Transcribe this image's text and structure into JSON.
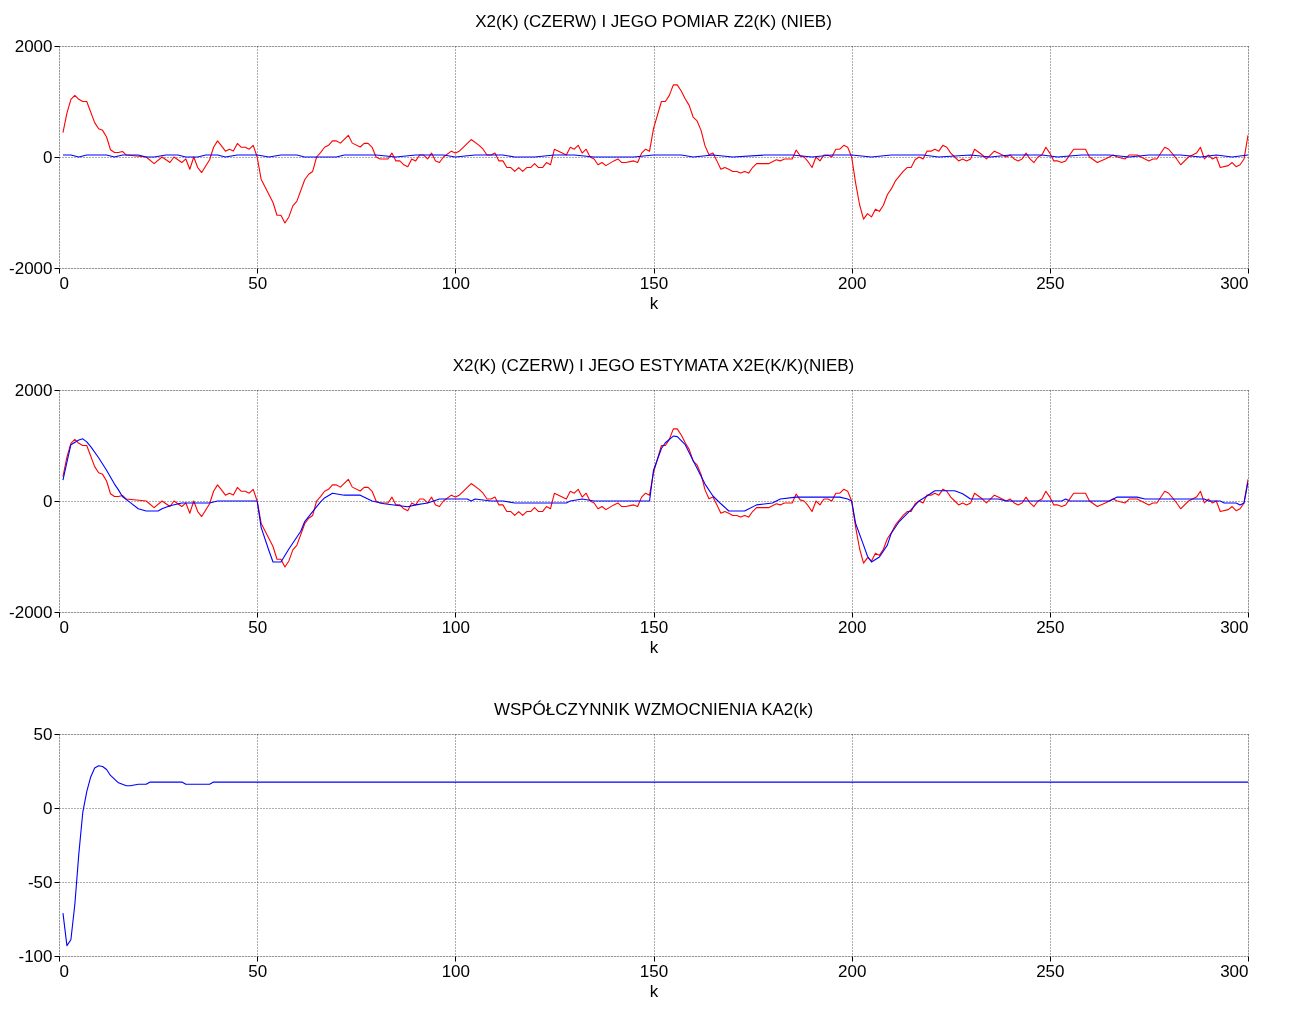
{
  "chart_data": [
    {
      "type": "line",
      "title": "X2(K) (CZERW) I  JEGO POMIAR Z2(K) (NIEB)",
      "xlabel": "k",
      "xlim": [
        0,
        300
      ],
      "xticks": [
        0,
        50,
        100,
        150,
        200,
        250,
        300
      ],
      "ylim": [
        -2000,
        2000
      ],
      "yticks": [
        -2000,
        0,
        2000
      ],
      "grid": true,
      "line_style": "solid",
      "marker": "none",
      "series": [
        {
          "color": "#ff0000",
          "x": [
            1,
            2,
            3,
            4,
            5,
            6,
            7,
            9,
            10,
            11,
            12,
            13,
            14,
            15,
            16,
            17,
            22,
            24,
            26,
            28,
            29,
            31,
            32,
            33,
            34,
            35,
            36,
            38,
            39,
            40,
            41,
            42,
            43,
            44,
            45,
            46,
            47,
            48,
            49,
            50,
            51,
            52,
            54,
            55,
            56,
            57,
            58,
            59,
            60,
            62,
            63,
            64,
            65,
            66,
            67,
            68,
            69,
            70,
            71,
            73,
            74,
            76,
            77,
            78,
            79,
            80,
            81,
            83,
            84,
            85,
            86,
            87,
            88,
            89,
            90,
            91,
            92,
            93,
            94,
            95,
            96,
            97,
            99,
            100,
            101,
            102,
            104,
            106,
            107,
            108,
            109,
            110,
            111,
            112,
            113,
            114,
            115,
            116,
            117,
            118,
            119,
            120,
            121,
            122,
            123,
            124,
            125,
            128,
            129,
            130,
            131,
            132,
            133,
            134,
            135,
            136,
            137,
            138,
            140,
            141,
            142,
            143,
            145,
            146,
            147,
            148,
            149,
            150,
            152,
            153,
            154,
            155,
            156,
            157,
            158,
            159,
            160,
            161,
            162,
            163,
            164,
            165,
            166,
            167,
            168,
            169,
            170,
            171,
            172,
            173,
            174,
            175,
            176,
            178,
            179,
            180,
            181,
            182,
            183,
            185,
            186,
            187,
            188,
            189,
            190,
            191,
            192,
            193,
            194,
            195,
            196,
            197,
            198,
            199,
            200,
            201,
            202,
            203,
            204,
            205,
            206,
            207,
            208,
            209,
            210,
            211,
            213,
            214,
            215,
            216,
            217,
            218,
            219,
            220,
            221,
            222,
            223,
            224,
            225,
            226,
            227,
            228,
            229,
            230,
            231,
            233,
            234,
            235,
            236,
            237,
            239,
            240,
            241,
            242,
            243,
            244,
            245,
            246,
            247,
            248,
            249,
            250,
            251,
            252,
            253,
            254,
            256,
            258,
            259,
            260,
            262,
            264,
            266,
            267,
            269,
            270,
            272,
            273,
            275,
            276,
            277,
            279,
            280,
            282,
            283,
            285,
            287,
            288,
            289,
            290,
            291,
            292,
            293,
            295,
            296,
            297,
            298,
            299,
            300
          ],
          "values": [
            440,
            790,
            1040,
            1110,
            1040,
            1000,
            1000,
            620,
            510,
            480,
            360,
            130,
            80,
            80,
            100,
            35,
            0,
            -120,
            0,
            -100,
            0,
            -100,
            -35,
            -220,
            0,
            -190,
            -280,
            -50,
            175,
            290,
            200,
            105,
            140,
            110,
            245,
            175,
            175,
            140,
            210,
            0,
            -400,
            -540,
            -820,
            -1050,
            -1050,
            -1190,
            -1080,
            -880,
            -800,
            -410,
            -310,
            -260,
            0,
            80,
            175,
            210,
            290,
            290,
            250,
            390,
            250,
            180,
            245,
            245,
            175,
            0,
            -35,
            -35,
            70,
            -70,
            -70,
            -140,
            -175,
            -35,
            -70,
            35,
            35,
            -35,
            70,
            -70,
            -100,
            0,
            105,
            70,
            105,
            175,
            315,
            210,
            140,
            35,
            35,
            70,
            -70,
            -70,
            -190,
            -190,
            -260,
            -190,
            -260,
            -190,
            -190,
            -120,
            -190,
            -190,
            -100,
            -140,
            140,
            35,
            175,
            140,
            210,
            70,
            140,
            0,
            -35,
            -140,
            -100,
            -155,
            -70,
            -35,
            -100,
            -100,
            -70,
            -100,
            70,
            140,
            105,
            510,
            1000,
            1000,
            1110,
            1300,
            1300,
            1190,
            1050,
            930,
            720,
            650,
            480,
            200,
            40,
            70,
            -70,
            -220,
            -190,
            -220,
            -260,
            -260,
            -290,
            -260,
            -290,
            -190,
            -120,
            -120,
            -120,
            -85,
            -50,
            -70,
            -35,
            -35,
            125,
            20,
            0,
            -85,
            -190,
            0,
            -70,
            35,
            35,
            0,
            140,
            140,
            210,
            175,
            0,
            -470,
            -860,
            -1120,
            -1020,
            -1080,
            -940,
            -980,
            -870,
            -680,
            -575,
            -435,
            -260,
            -190,
            -190,
            -50,
            0,
            -35,
            105,
            105,
            140,
            105,
            210,
            175,
            70,
            0,
            -70,
            -35,
            -70,
            -35,
            140,
            35,
            -35,
            35,
            105,
            70,
            0,
            35,
            -35,
            -70,
            -35,
            70,
            -35,
            -100,
            0,
            35,
            175,
            70,
            -70,
            -70,
            -100,
            -70,
            140,
            140,
            140,
            0,
            -100,
            -35,
            35,
            0,
            -35,
            35,
            35,
            0,
            -70,
            -35,
            -35,
            175,
            140,
            -35,
            -140,
            0,
            70,
            175,
            -35,
            35,
            -35,
            0,
            -190,
            -155,
            -100,
            -175,
            -140,
            -35,
            390
          ]
        },
        {
          "color": "#0000ff",
          "x": [
            1,
            3,
            5,
            7,
            12,
            14,
            16,
            20,
            22,
            24,
            27,
            30,
            32,
            35,
            37,
            40,
            42,
            45,
            50,
            53,
            56,
            60,
            62,
            70,
            72,
            80,
            85,
            90,
            97,
            100,
            105,
            112,
            115,
            120,
            125,
            130,
            135,
            145,
            150,
            157,
            160,
            165,
            170,
            178,
            185,
            190,
            195,
            200,
            205,
            210,
            218,
            222,
            230,
            235,
            240,
            248,
            252,
            258,
            265,
            270,
            275,
            283,
            288,
            292,
            296,
            300
          ],
          "values": [
            35,
            35,
            0,
            35,
            35,
            0,
            35,
            35,
            0,
            0,
            35,
            35,
            0,
            0,
            35,
            35,
            0,
            35,
            35,
            0,
            35,
            35,
            0,
            0,
            35,
            35,
            0,
            35,
            35,
            0,
            35,
            35,
            0,
            0,
            35,
            35,
            0,
            0,
            35,
            35,
            0,
            35,
            0,
            35,
            35,
            0,
            35,
            35,
            0,
            35,
            35,
            0,
            35,
            0,
            35,
            35,
            0,
            35,
            35,
            0,
            35,
            35,
            0,
            35,
            0,
            35
          ]
        }
      ]
    },
    {
      "type": "line",
      "title": "X2(K) (CZERW) I  JEGO ESTYMATA X2E(K/K)(NIEB)",
      "xlabel": "k",
      "xlim": [
        0,
        300
      ],
      "xticks": [
        0,
        50,
        100,
        150,
        200,
        250,
        300
      ],
      "ylim": [
        -2000,
        2000
      ],
      "yticks": [
        -2000,
        0,
        2000
      ],
      "grid": true,
      "line_style": "solid",
      "marker": "none",
      "series": [
        {
          "color": "#ff0000",
          "x": [
            1,
            2,
            3,
            4,
            5,
            6,
            7,
            9,
            10,
            11,
            12,
            13,
            14,
            15,
            16,
            17,
            22,
            24,
            26,
            28,
            29,
            31,
            32,
            33,
            34,
            35,
            36,
            38,
            39,
            40,
            41,
            42,
            43,
            44,
            45,
            46,
            47,
            48,
            49,
            50,
            51,
            52,
            54,
            55,
            56,
            57,
            58,
            59,
            60,
            62,
            63,
            64,
            65,
            66,
            67,
            68,
            69,
            70,
            71,
            73,
            74,
            76,
            77,
            78,
            79,
            80,
            81,
            83,
            84,
            85,
            86,
            87,
            88,
            89,
            90,
            91,
            92,
            93,
            94,
            95,
            96,
            97,
            99,
            100,
            101,
            102,
            104,
            106,
            107,
            108,
            109,
            110,
            111,
            112,
            113,
            114,
            115,
            116,
            117,
            118,
            119,
            120,
            121,
            122,
            123,
            124,
            125,
            128,
            129,
            130,
            131,
            132,
            133,
            134,
            135,
            136,
            137,
            138,
            140,
            141,
            142,
            143,
            145,
            146,
            147,
            148,
            149,
            150,
            152,
            153,
            154,
            155,
            156,
            157,
            158,
            159,
            160,
            161,
            162,
            163,
            164,
            165,
            166,
            167,
            168,
            169,
            170,
            171,
            172,
            173,
            174,
            175,
            176,
            178,
            179,
            180,
            181,
            182,
            183,
            185,
            186,
            187,
            188,
            189,
            190,
            191,
            192,
            193,
            194,
            195,
            196,
            197,
            198,
            199,
            200,
            201,
            202,
            203,
            204,
            205,
            206,
            207,
            208,
            209,
            210,
            211,
            213,
            214,
            215,
            216,
            217,
            218,
            219,
            220,
            221,
            222,
            223,
            224,
            225,
            226,
            227,
            228,
            229,
            230,
            231,
            233,
            234,
            235,
            236,
            237,
            239,
            240,
            241,
            242,
            243,
            244,
            245,
            246,
            247,
            248,
            249,
            250,
            251,
            252,
            253,
            254,
            256,
            258,
            259,
            260,
            262,
            264,
            266,
            267,
            269,
            270,
            272,
            273,
            275,
            276,
            277,
            279,
            280,
            282,
            283,
            285,
            287,
            288,
            289,
            290,
            291,
            292,
            293,
            295,
            296,
            297,
            298,
            299,
            300
          ],
          "values": [
            440,
            790,
            1040,
            1110,
            1040,
            1000,
            1000,
            620,
            510,
            480,
            360,
            130,
            80,
            80,
            100,
            35,
            0,
            -120,
            0,
            -100,
            0,
            -100,
            -35,
            -220,
            0,
            -190,
            -280,
            -50,
            175,
            290,
            200,
            105,
            140,
            110,
            245,
            175,
            175,
            140,
            210,
            0,
            -400,
            -540,
            -820,
            -1050,
            -1050,
            -1190,
            -1080,
            -880,
            -800,
            -410,
            -310,
            -260,
            0,
            80,
            175,
            210,
            290,
            290,
            250,
            390,
            250,
            180,
            245,
            245,
            175,
            0,
            -35,
            -35,
            70,
            -70,
            -70,
            -140,
            -175,
            -35,
            -70,
            35,
            35,
            -35,
            70,
            -70,
            -100,
            0,
            105,
            70,
            105,
            175,
            315,
            210,
            140,
            35,
            35,
            70,
            -70,
            -70,
            -190,
            -190,
            -260,
            -190,
            -260,
            -190,
            -190,
            -120,
            -190,
            -190,
            -100,
            -140,
            140,
            35,
            175,
            140,
            210,
            70,
            140,
            0,
            -35,
            -140,
            -100,
            -155,
            -70,
            -35,
            -100,
            -100,
            -70,
            -100,
            70,
            140,
            105,
            510,
            1000,
            1000,
            1110,
            1300,
            1300,
            1190,
            1050,
            930,
            720,
            650,
            480,
            200,
            40,
            70,
            -70,
            -220,
            -190,
            -220,
            -260,
            -260,
            -290,
            -260,
            -290,
            -190,
            -120,
            -120,
            -120,
            -85,
            -50,
            -70,
            -35,
            -35,
            125,
            20,
            0,
            -85,
            -190,
            0,
            -70,
            35,
            35,
            0,
            140,
            140,
            210,
            175,
            0,
            -470,
            -860,
            -1120,
            -1020,
            -1080,
            -940,
            -980,
            -870,
            -680,
            -575,
            -435,
            -260,
            -190,
            -190,
            -50,
            0,
            -35,
            105,
            105,
            140,
            105,
            210,
            175,
            70,
            0,
            -70,
            -35,
            -70,
            -35,
            140,
            35,
            -35,
            35,
            105,
            70,
            0,
            35,
            -35,
            -70,
            -35,
            70,
            -35,
            -100,
            0,
            35,
            175,
            70,
            -70,
            -70,
            -100,
            -70,
            140,
            140,
            140,
            0,
            -100,
            -35,
            35,
            0,
            -35,
            35,
            35,
            0,
            -70,
            -35,
            -35,
            175,
            140,
            -35,
            -140,
            0,
            70,
            175,
            -35,
            35,
            -35,
            0,
            -190,
            -155,
            -100,
            -175,
            -140,
            -35,
            390
          ]
        },
        {
          "color": "#0000ff",
          "x": [
            1,
            2,
            3,
            5,
            6,
            7,
            8,
            10,
            12,
            14,
            15,
            16,
            18,
            20,
            22,
            25,
            26,
            28,
            31,
            38,
            40,
            50,
            51,
            53,
            54,
            56,
            58,
            61,
            62,
            64,
            66,
            67,
            69,
            72,
            76,
            79,
            82,
            86,
            88,
            90,
            93,
            96,
            103,
            104,
            105,
            109,
            112,
            115,
            128,
            129,
            132,
            135,
            149,
            150,
            152,
            153,
            155,
            156,
            158,
            160,
            163,
            165,
            167,
            169,
            173,
            176,
            180,
            182,
            186,
            197,
            199,
            200,
            201,
            203,
            204,
            205,
            207,
            209,
            210,
            212,
            215,
            217,
            219,
            221,
            226,
            228,
            230,
            237,
            239,
            253,
            254,
            255,
            265,
            267,
            272,
            274,
            289,
            290,
            293,
            294,
            297,
            298,
            299,
            300
          ],
          "values": [
            375,
            700,
            1015,
            1100,
            1120,
            1065,
            980,
            780,
            555,
            305,
            200,
            80,
            -30,
            -140,
            -180,
            -180,
            -140,
            -85,
            -35,
            -35,
            0,
            0,
            -475,
            -900,
            -1100,
            -1100,
            -865,
            -545,
            -370,
            -190,
            -15,
            55,
            140,
            105,
            105,
            0,
            -50,
            -85,
            -105,
            -70,
            -35,
            35,
            35,
            0,
            35,
            0,
            0,
            -35,
            -35,
            0,
            35,
            0,
            0,
            555,
            945,
            1050,
            1170,
            1160,
            1015,
            730,
            305,
            90,
            -50,
            -180,
            -180,
            -70,
            -35,
            35,
            70,
            70,
            35,
            0,
            -405,
            -795,
            -995,
            -1100,
            -1010,
            -795,
            -580,
            -370,
            -155,
            0,
            90,
            185,
            185,
            130,
            35,
            35,
            0,
            0,
            35,
            0,
            0,
            70,
            70,
            35,
            35,
            0,
            0,
            -35,
            -35,
            -70,
            -35,
            340
          ]
        }
      ]
    },
    {
      "type": "line",
      "title": "WSPÓŁCZYNNIK WZMOCNIENIA KA2(k)",
      "xlabel": "k",
      "xlim": [
        0,
        300
      ],
      "xticks": [
        0,
        50,
        100,
        150,
        200,
        250,
        300
      ],
      "ylim": [
        -100,
        50
      ],
      "yticks": [
        -100,
        -50,
        0,
        50
      ],
      "grid": true,
      "line_style": "solid",
      "marker": "none",
      "series": [
        {
          "color": "#0000ff",
          "x": [
            1,
            2,
            3,
            4,
            5,
            6,
            7,
            8,
            9,
            10,
            11,
            12,
            13,
            15,
            17,
            18,
            20,
            22,
            23,
            31,
            32,
            38,
            39,
            300
          ],
          "values": [
            -71,
            -93,
            -89,
            -65,
            -31,
            -3,
            11,
            21,
            27,
            28.5,
            28,
            26,
            22,
            17,
            15,
            15,
            16,
            16,
            17.5,
            17.5,
            16,
            16,
            17.5,
            17.5
          ]
        }
      ]
    }
  ]
}
